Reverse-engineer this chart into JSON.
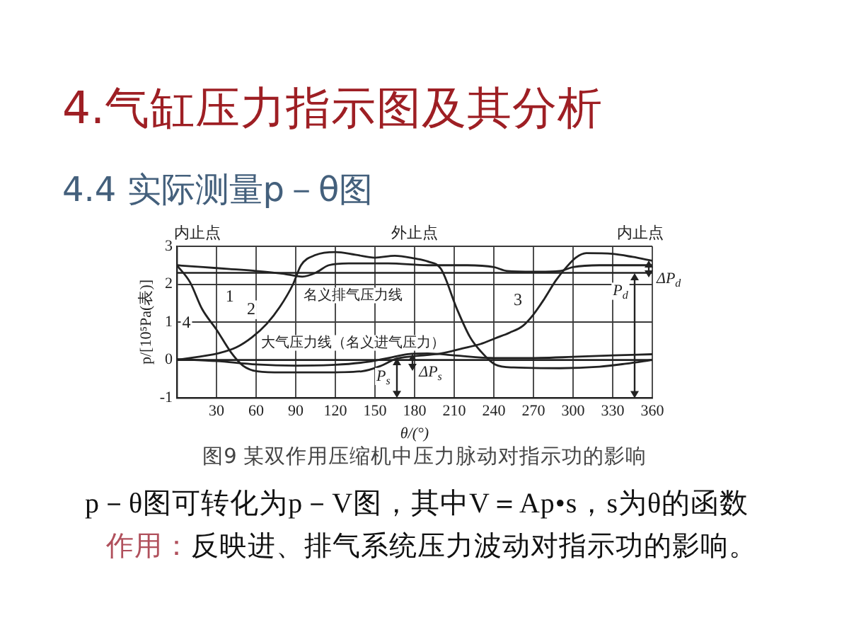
{
  "chart_data": {
    "type": "line",
    "title": "4.气缸压力指示图及其分析",
    "subtitle": "4.4 实际测量p－θ图",
    "xlabel": "θ/(°)",
    "ylabel": "p/[10⁵Pa(表)]",
    "xlim": [
      0,
      360
    ],
    "xticks": [
      30,
      60,
      90,
      120,
      150,
      180,
      210,
      240,
      270,
      300,
      330,
      360
    ],
    "ylim": [
      -1,
      3
    ],
    "yticks": [
      -1,
      0,
      1,
      2,
      3
    ],
    "grid": true,
    "series": [
      {
        "name": "1",
        "color": "#222222",
        "x": [
          0,
          20,
          40,
          60,
          80,
          95,
          105,
          115,
          130,
          160,
          190,
          220,
          240,
          250,
          270,
          290,
          300,
          320,
          340,
          360
        ],
        "values": [
          2.5,
          2.45,
          2.4,
          2.35,
          2.28,
          2.2,
          2.3,
          2.5,
          2.55,
          2.55,
          2.5,
          2.5,
          2.45,
          2.35,
          2.33,
          2.35,
          2.45,
          2.5,
          2.5,
          2.5
        ]
      },
      {
        "name": "2",
        "color": "#222222",
        "x": [
          0,
          32,
          45,
          57,
          68,
          78,
          88,
          94,
          105,
          120,
          135,
          150,
          165,
          180,
          190,
          200,
          212,
          222,
          230,
          241,
          255,
          290,
          320,
          340,
          360
        ],
        "values": [
          0,
          0.18,
          0.33,
          0.6,
          0.95,
          1.4,
          2.0,
          2.5,
          2.77,
          2.85,
          2.78,
          2.7,
          2.75,
          2.68,
          2.6,
          2.4,
          1.35,
          0.6,
          0.23,
          -0.12,
          -0.2,
          -0.22,
          -0.18,
          -0.1,
          0
        ]
      },
      {
        "name": "3",
        "color": "#222222",
        "x": [
          180,
          200,
          216,
          230,
          241,
          252,
          262,
          270,
          278,
          287,
          295,
          302,
          310,
          330,
          345,
          360
        ],
        "values": [
          0.1,
          0.17,
          0.3,
          0.42,
          0.57,
          0.72,
          0.9,
          1.2,
          1.6,
          2.1,
          2.45,
          2.7,
          2.82,
          2.8,
          2.72,
          2.62
        ]
      },
      {
        "name": "4",
        "color": "#222222",
        "x": [
          0,
          10,
          19,
          30,
          41,
          50,
          61,
          80,
          110,
          140,
          155,
          166,
          180
        ],
        "values": [
          2.5,
          2.05,
          1.35,
          0.8,
          0.2,
          -0.15,
          -0.3,
          -0.33,
          -0.33,
          -0.3,
          -0.15,
          0.03,
          0.1
        ]
      },
      {
        "color": "#222222",
        "x": [
          0,
          30,
          60,
          90,
          120,
          145,
          160,
          175,
          190,
          210,
          240,
          270,
          300,
          330,
          360
        ],
        "values": [
          0.02,
          -0.03,
          -0.12,
          -0.15,
          -0.13,
          -0.05,
          0.05,
          0.15,
          0.17,
          0.12,
          0.05,
          0.05,
          0.08,
          0.12,
          0.15
        ]
      }
    ],
    "ref_lines": [
      {
        "axis": "y",
        "value": 2.3,
        "label": "名义排气压力线",
        "color": "#222222"
      },
      {
        "axis": "y",
        "value": 0,
        "label": "大气压力线（名义进气压力）",
        "color": "#222222"
      }
    ],
    "annotations": [
      "内止点",
      "外止点",
      "内止点",
      {
        "text": "P$_{s}$",
        "x": 167,
        "y": 0.05
      },
      {
        "text": "ΔP$_{s}$",
        "x": 178,
        "y": 0.15
      },
      {
        "text": "P$_{d}$",
        "x": 347,
        "y": 2.3
      },
      {
        "text": "ΔP$_{d}$",
        "x": 357,
        "y": 2.62
      },
      "图9 某双作用压缩机中压力脉动对指示功的影响",
      "p－θ图可转化为p－V图，其中V＝Ap•s，s为θ的函数",
      "作用：",
      "反映进、排气系统压力波动对指示功的影响。"
    ]
  }
}
